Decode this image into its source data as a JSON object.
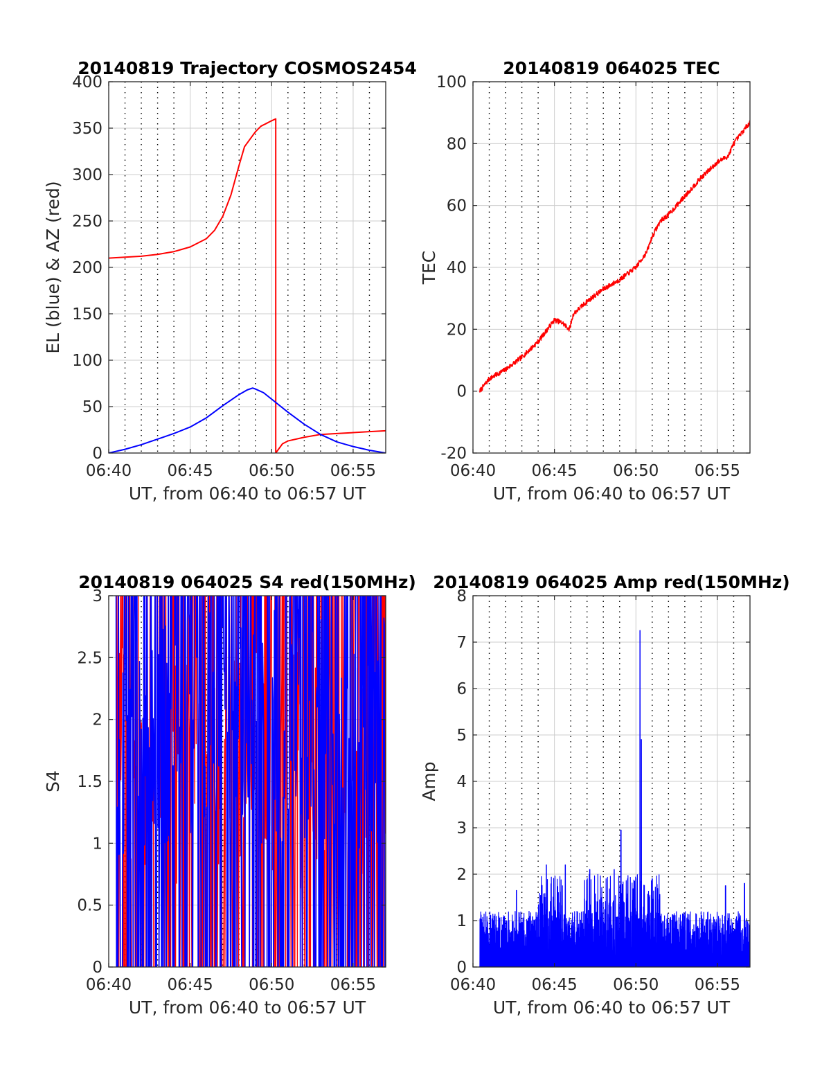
{
  "colors": {
    "el": "#0000ff",
    "az": "#ff0000",
    "tec": "#ff0000",
    "red": "#ff0000",
    "blue": "#0000ff",
    "grid": "#cccccc",
    "axis": "#262626"
  },
  "chart_data": [
    {
      "type": "line",
      "title": "20140819 Trajectory COSMOS2454",
      "xlabel": "UT, from 06:40 to 06:57 UT",
      "ylabel": "EL (blue) & AZ (red)",
      "xlim": [
        "06:40",
        "06:57"
      ],
      "ylim": [
        0,
        400
      ],
      "xticks": [
        "06:40",
        "06:45",
        "06:50",
        "06:55"
      ],
      "yticks": [
        "0",
        "50",
        "100",
        "150",
        "200",
        "250",
        "300",
        "350",
        "400"
      ],
      "minor_xgrid": "dotted, every minute",
      "series": [
        {
          "color": "red",
          "x": [
            "06:40",
            "06:41",
            "06:42",
            "06:43",
            "06:44",
            "06:45",
            "06:46",
            "06:46:30",
            "06:47",
            "06:47:30",
            "06:48",
            "06:48:20",
            "06:48:40",
            "06:49",
            "06:49:20",
            "06:49:40",
            "06:50",
            "06:50:15",
            "06:50:15",
            "06:50:40",
            "06:51",
            "06:52",
            "06:53",
            "06:54",
            "06:55",
            "06:56",
            "06:57"
          ],
          "values": [
            210,
            211,
            212,
            214,
            217,
            222,
            231,
            240,
            255,
            278,
            310,
            330,
            338,
            346,
            352,
            355,
            358,
            360,
            0,
            10,
            13,
            17,
            20,
            21,
            22,
            23,
            24
          ]
        },
        {
          "color": "blue",
          "x": [
            "06:40",
            "06:41",
            "06:42",
            "06:43",
            "06:44",
            "06:45",
            "06:46",
            "06:47",
            "06:48",
            "06:48:30",
            "06:48:50",
            "06:49",
            "06:49:30",
            "06:50",
            "06:51",
            "06:52",
            "06:53",
            "06:54",
            "06:55",
            "06:56",
            "06:57"
          ],
          "values": [
            0,
            4,
            9,
            15,
            21,
            28,
            38,
            51,
            63,
            68,
            70,
            69,
            65,
            58,
            44,
            31,
            20,
            12,
            7,
            3,
            0
          ]
        }
      ]
    },
    {
      "type": "line",
      "title": "20140819 064025 TEC",
      "xlabel": "UT, from 06:40 to 06:57 UT",
      "ylabel": "TEC",
      "xlim": [
        "06:40",
        "06:57"
      ],
      "ylim": [
        -20,
        100
      ],
      "xticks": [
        "06:40",
        "06:45",
        "06:50",
        "06:55"
      ],
      "yticks": [
        "-20",
        "0",
        "20",
        "40",
        "60",
        "80",
        "100"
      ],
      "series": [
        {
          "color": "red",
          "x": [
            "06:40:25",
            "06:41",
            "06:42",
            "06:43",
            "06:44",
            "06:45",
            "06:45:30",
            "06:45:55",
            "06:46:10",
            "06:47",
            "06:48",
            "06:49",
            "06:50",
            "06:50:40",
            "06:51",
            "06:51:30",
            "06:52",
            "06:53",
            "06:54",
            "06:55",
            "06:55:40",
            "06:56",
            "06:57"
          ],
          "values": [
            0,
            4,
            7,
            11,
            16,
            23,
            22,
            20,
            25,
            29,
            33,
            36,
            40,
            45,
            50,
            55,
            57,
            63,
            69,
            74,
            76,
            80,
            87
          ]
        }
      ]
    },
    {
      "type": "line",
      "title": "20140819 064025 S4 red(150MHz)",
      "xlabel": "UT, from 06:40 to 06:57 UT",
      "ylabel": "S4",
      "xlim": [
        "06:40",
        "06:57"
      ],
      "ylim": [
        0,
        3
      ],
      "xticks": [
        "06:40",
        "06:45",
        "06:50",
        "06:55"
      ],
      "yticks": [
        "0",
        "0.5",
        "1",
        "1.5",
        "2",
        "2.5",
        "3"
      ],
      "series": [
        {
          "color": "red",
          "x_range": [
            "06:40:25",
            "06:57"
          ],
          "min": 0,
          "max": 3,
          "note": "dense noisy trace spanning 0 to >3"
        },
        {
          "color": "blue",
          "x_range": [
            "06:40:25",
            "06:57"
          ],
          "min": 0,
          "max": 3,
          "note": "dense noisy trace spanning 0 to >3"
        }
      ]
    },
    {
      "type": "line",
      "title": "20140819 064025 Amp red(150MHz)",
      "xlabel": "UT, from 06:40 to 06:57 UT",
      "ylabel": "Amp",
      "xlim": [
        "06:40",
        "06:57"
      ],
      "ylim": [
        0,
        8
      ],
      "xticks": [
        "06:40",
        "06:45",
        "06:50",
        "06:55"
      ],
      "yticks": [
        "0",
        "1",
        "2",
        "3",
        "4",
        "5",
        "6",
        "7",
        "8"
      ],
      "series": [
        {
          "color": "blue",
          "x_range": [
            "06:40:25",
            "06:57"
          ],
          "baseline_max": 1.2,
          "peaks": [
            {
              "x": "06:42:40",
              "value": 1.65
            },
            {
              "x": "06:44:30",
              "value": 2.2
            },
            {
              "x": "06:45:40",
              "value": 2.2
            },
            {
              "x": "06:47:10",
              "value": 2.1
            },
            {
              "x": "06:48:40",
              "value": 2.1
            },
            {
              "x": "06:49:05",
              "value": 2.95
            },
            {
              "x": "06:50:15",
              "value": 7.25
            },
            {
              "x": "06:50:20",
              "value": 4.9
            },
            {
              "x": "06:51",
              "value": 1.9
            },
            {
              "x": "06:55:30",
              "value": 1.75
            },
            {
              "x": "06:56:40",
              "value": 1.8
            }
          ]
        }
      ]
    }
  ]
}
